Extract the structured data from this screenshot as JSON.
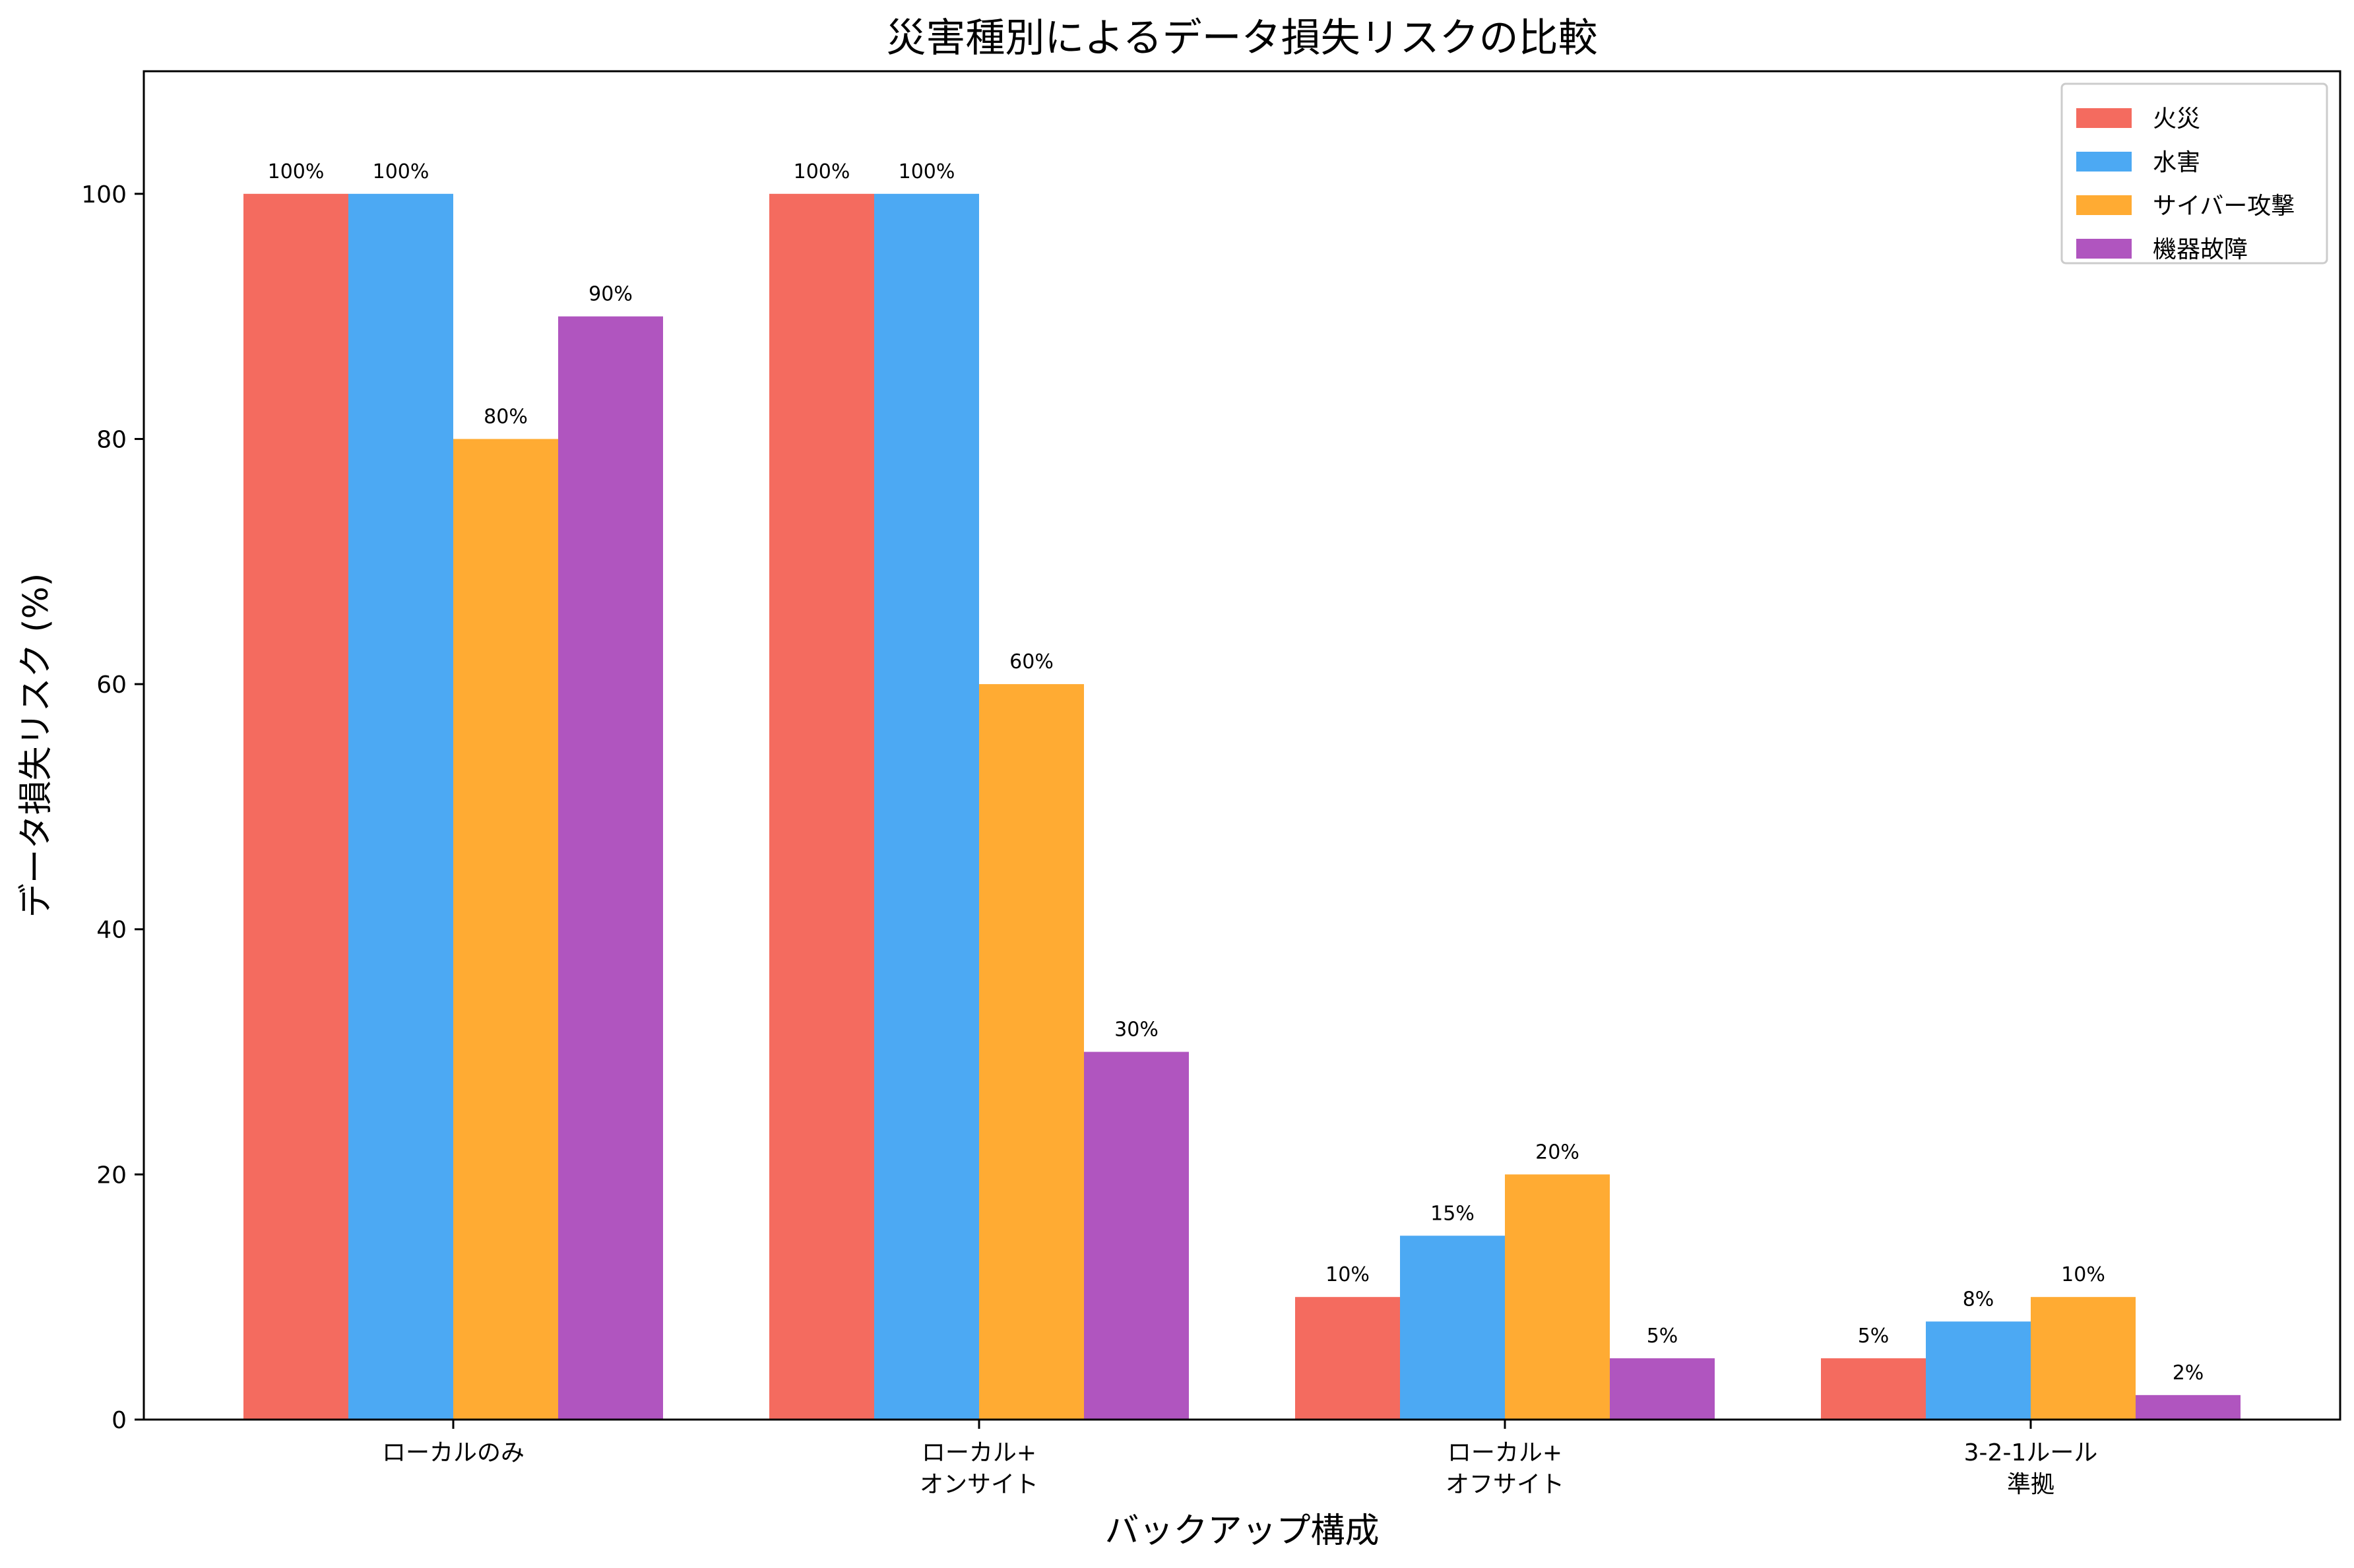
{
  "chart_data": {
    "type": "bar",
    "title": "災害種別によるデータ損失リスクの比較",
    "xlabel": "バックアップ構成",
    "ylabel": "データ損失リスク (%)",
    "categories": [
      [
        "ローカルのみ"
      ],
      [
        "ローカル+",
        "オンサイト"
      ],
      [
        "ローカル+",
        "オフサイト"
      ],
      [
        "3-2-1ルール",
        "準拠"
      ]
    ],
    "series": [
      {
        "name": "火災",
        "color": "#f46b5f",
        "values": [
          100,
          100,
          10,
          5
        ]
      },
      {
        "name": "水害",
        "color": "#4ca9f3",
        "values": [
          100,
          100,
          15,
          8
        ]
      },
      {
        "name": "サイバー攻撃",
        "color": "#ffab33",
        "values": [
          80,
          60,
          20,
          10
        ]
      },
      {
        "name": "機器故障",
        "color": "#b055bf",
        "values": [
          90,
          30,
          5,
          2
        ]
      }
    ],
    "value_suffix": "%",
    "ylim": [
      0,
      110
    ],
    "yticks": [
      0,
      20,
      40,
      60,
      80,
      100
    ],
    "grid": false,
    "legend_position": "top-right"
  }
}
